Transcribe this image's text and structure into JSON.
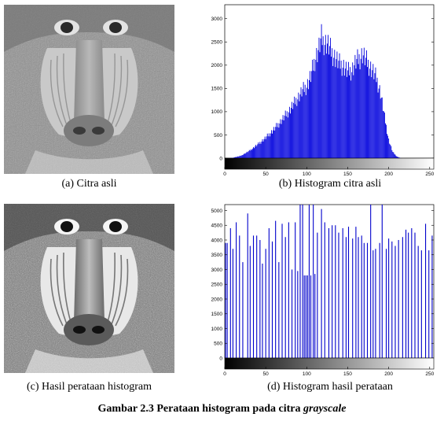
{
  "panels": {
    "a": {
      "caption": "(a) Citra asli"
    },
    "b": {
      "caption": "(b) Histogram citra asli"
    },
    "c": {
      "caption": "(c) Hasil perataan histogram"
    },
    "d": {
      "caption": "(d) Histogram hasil perataan"
    }
  },
  "figure_caption": {
    "main": "Gambar 2.3 Perataan histogram pada citra ",
    "emphasis": "grayscale"
  },
  "chart_data": [
    {
      "type": "bar",
      "title": "",
      "xlabel": "",
      "ylabel": "",
      "xlim": [
        0,
        255
      ],
      "ylim": [
        0,
        3300
      ],
      "yticks": [
        0,
        500,
        1000,
        1500,
        2000,
        2500,
        3000
      ],
      "xticks": [
        0,
        50,
        100,
        150,
        200,
        250
      ],
      "bar_color": "#0000dd",
      "grayscale_colorbar": true,
      "envelope": [
        [
          0,
          0
        ],
        [
          5,
          0
        ],
        [
          10,
          10
        ],
        [
          20,
          60
        ],
        [
          30,
          180
        ],
        [
          40,
          330
        ],
        [
          50,
          500
        ],
        [
          60,
          700
        ],
        [
          70,
          940
        ],
        [
          80,
          1200
        ],
        [
          90,
          1500
        ],
        [
          95,
          1650
        ],
        [
          100,
          1760
        ],
        [
          105,
          2000
        ],
        [
          110,
          2400
        ],
        [
          115,
          2700
        ],
        [
          118,
          2940
        ],
        [
          120,
          2850
        ],
        [
          125,
          2800
        ],
        [
          130,
          2600
        ],
        [
          135,
          2450
        ],
        [
          140,
          2300
        ],
        [
          145,
          2250
        ],
        [
          150,
          2100
        ],
        [
          155,
          2150
        ],
        [
          160,
          2350
        ],
        [
          165,
          2450
        ],
        [
          168,
          2550
        ],
        [
          172,
          2400
        ],
        [
          175,
          2300
        ],
        [
          180,
          2150
        ],
        [
          185,
          1950
        ],
        [
          190,
          1600
        ],
        [
          195,
          1000
        ],
        [
          200,
          450
        ],
        [
          205,
          150
        ],
        [
          210,
          40
        ],
        [
          215,
          0
        ],
        [
          255,
          0
        ]
      ]
    },
    {
      "type": "bar",
      "title": "",
      "xlabel": "",
      "ylabel": "",
      "xlim": [
        0,
        255
      ],
      "ylim": [
        0,
        5200
      ],
      "yticks": [
        0,
        500,
        1000,
        1500,
        2000,
        2500,
        3000,
        3500,
        4000,
        4500,
        5000
      ],
      "xticks": [
        0,
        50,
        100,
        150,
        200,
        250
      ],
      "bar_color": "#0000cc",
      "grayscale_colorbar": true,
      "bars": [
        [
          1,
          3900
        ],
        [
          3,
          3900
        ],
        [
          7,
          4400
        ],
        [
          10,
          3700
        ],
        [
          14,
          4600
        ],
        [
          18,
          4150
        ],
        [
          22,
          3250
        ],
        [
          28,
          4900
        ],
        [
          31,
          3800
        ],
        [
          35,
          4150
        ],
        [
          39,
          4150
        ],
        [
          43,
          4000
        ],
        [
          46,
          3200
        ],
        [
          50,
          3700
        ],
        [
          54,
          4400
        ],
        [
          58,
          3950
        ],
        [
          62,
          4650
        ],
        [
          66,
          3250
        ],
        [
          70,
          4550
        ],
        [
          74,
          4100
        ],
        [
          78,
          4600
        ],
        [
          82,
          3000
        ],
        [
          86,
          4600
        ],
        [
          89,
          2950
        ],
        [
          92,
          5200
        ],
        [
          95,
          5200
        ],
        [
          97,
          2800
        ],
        [
          99,
          2800
        ],
        [
          101,
          2800
        ],
        [
          103,
          5200
        ],
        [
          105,
          2800
        ],
        [
          108,
          5200
        ],
        [
          110,
          2850
        ],
        [
          113,
          4250
        ],
        [
          118,
          5050
        ],
        [
          122,
          4600
        ],
        [
          127,
          4400
        ],
        [
          131,
          4500
        ],
        [
          135,
          4500
        ],
        [
          139,
          4250
        ],
        [
          144,
          4400
        ],
        [
          148,
          4100
        ],
        [
          151,
          4450
        ],
        [
          156,
          4050
        ],
        [
          160,
          4450
        ],
        [
          163,
          4100
        ],
        [
          167,
          4150
        ],
        [
          170,
          3900
        ],
        [
          174,
          3900
        ],
        [
          178,
          5200
        ],
        [
          181,
          3650
        ],
        [
          184,
          3700
        ],
        [
          189,
          3900
        ],
        [
          192,
          5200
        ],
        [
          197,
          3700
        ],
        [
          200,
          4050
        ],
        [
          204,
          3950
        ],
        [
          208,
          3800
        ],
        [
          212,
          4000
        ],
        [
          217,
          4100
        ],
        [
          221,
          4350
        ],
        [
          224,
          4250
        ],
        [
          228,
          4400
        ],
        [
          232,
          4250
        ],
        [
          236,
          3800
        ],
        [
          240,
          3650
        ],
        [
          245,
          4550
        ],
        [
          249,
          3650
        ],
        [
          253,
          4150
        ]
      ]
    }
  ]
}
